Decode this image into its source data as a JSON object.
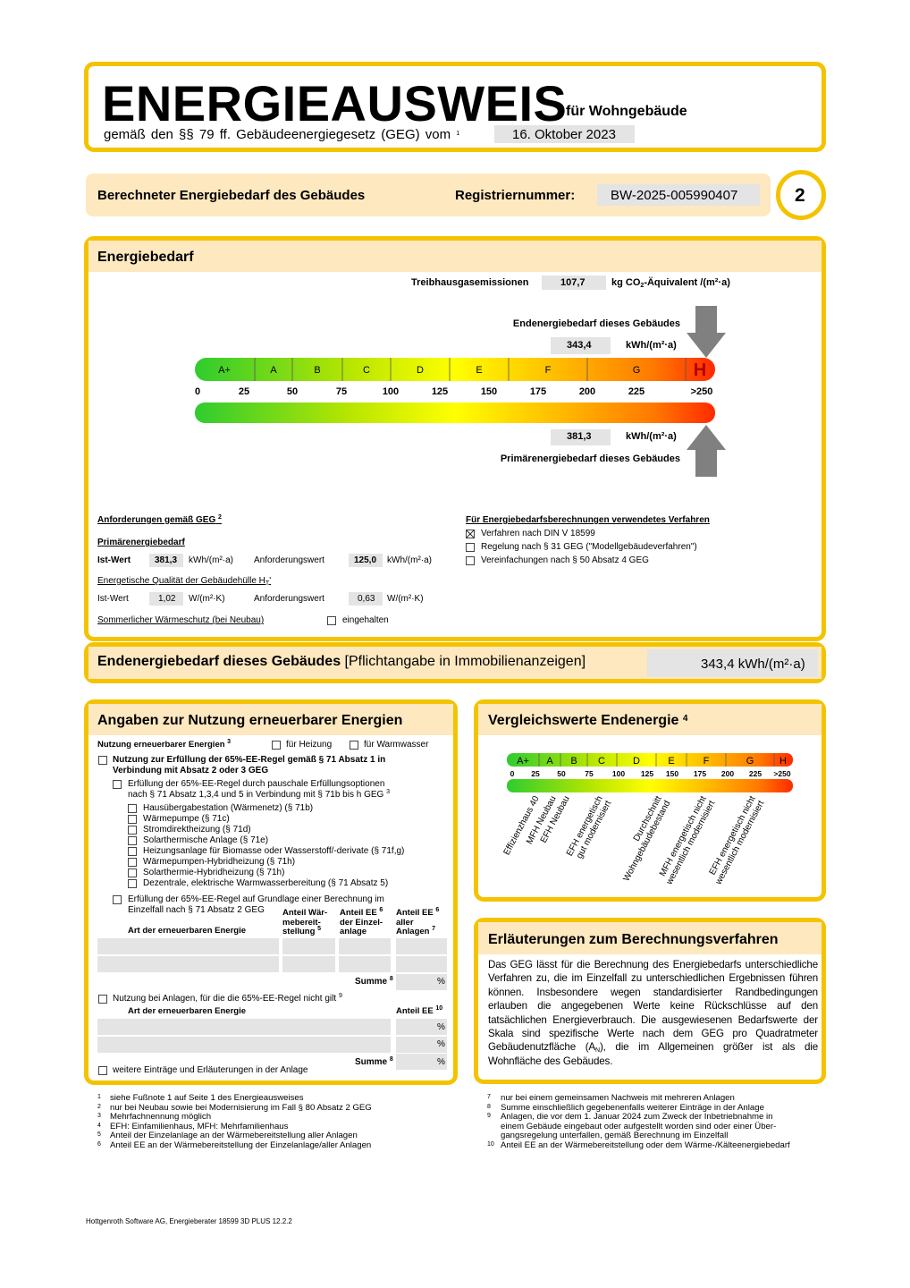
{
  "header": {
    "title": "ENERGIEAUSWEIS",
    "subtitle": "für Wohngebäude",
    "basis": "gemäß den §§ 79 ff. Gebäudeenergiegesetz (GEG) vom",
    "basis_note": "1",
    "date": "16. Oktober 2023"
  },
  "info_bar": {
    "label": "Berechneter Energiebedarf des Gebäudes",
    "registration_label": "Registriernummer:",
    "registration_number": "BW-2025-005990407",
    "page": "2"
  },
  "energy_demand": {
    "title": "Energiebedarf",
    "ghg": {
      "label": "Treibhausgasemissionen",
      "value": "107,7",
      "unit_pre": "kg CO",
      "unit_sub": "2",
      "unit_post": "-Äquivalent /(m²·a)"
    },
    "final": {
      "label": "Endenergiebedarf dieses Gebäudes",
      "value": "343,4",
      "unit": "kWh/(m²·a)"
    },
    "primary": {
      "label": "Primärenergiebedarf dieses Gebäudes",
      "value": "381,3",
      "unit": "kWh/(m²·a)"
    },
    "classes": [
      "A+",
      "A",
      "B",
      "C",
      "D",
      "E",
      "F",
      "G",
      "H"
    ],
    "scale": [
      "0",
      "25",
      "50",
      "75",
      "100",
      "125",
      "150",
      "175",
      "200",
      "225",
      ">250"
    ]
  },
  "requirements": {
    "title": "Anforderungen gemäß GEG",
    "title_note": "2",
    "primary_title": "Primärenergiebedarf",
    "actual_label": "Ist-Wert",
    "required_label": "Anforderungswert",
    "primary_actual": "381,3",
    "primary_required": "125,0",
    "primary_unit": "kWh/(m²·a)",
    "envelope_title": "Energetische Qualität der Gebäudehülle H",
    "envelope_sub": "T",
    "envelope_post": "'",
    "envelope_actual": "1,02",
    "envelope_required": "0,63",
    "envelope_unit": "W/(m²·K)",
    "summer": "Sommerlicher Wärmeschutz (bei Neubau)",
    "summer_check": "eingehalten"
  },
  "methods": {
    "title": "Für Energiebedarfsberechnungen verwendetes Verfahren",
    "items": [
      {
        "label": "Verfahren nach DIN V 18599",
        "checked": true
      },
      {
        "label": "Regelung nach § 31 GEG (\"Modellgebäudeverfahren\")",
        "checked": false
      },
      {
        "label": "Vereinfachungen nach § 50 Absatz 4 GEG",
        "checked": false
      }
    ]
  },
  "summary": {
    "label": "Endenergiebedarf dieses Gebäudes",
    "note": "[Pflichtangabe in Immobilienanzeigen]",
    "value": "343,4 kWh/(m²·a)"
  },
  "renewables": {
    "title": "Angaben zur Nutzung erneuerbarer Energien",
    "usage_label": "Nutzung erneuerbarer Energien",
    "usage_note": "3",
    "heating": "für Heizung",
    "hot_water": "für Warmwasser",
    "rule": [
      "Nutzung zur Erfüllung der 65%-EE-Regel gemäß § 71 Absatz 1 in",
      "Verbindung mit Absatz 2 oder 3 GEG"
    ],
    "flat_rate": [
      "Erfüllung der 65%-EE-Regel durch pauschale Erfüllungsoptionen",
      "nach § 71 Absatz 1,3,4 und 5 in Verbindung mit § 71b bis h GEG"
    ],
    "flat_rate_note": "3",
    "options": [
      "Hausübergabestation (Wärmenetz) (§ 71b)",
      "Wärmepumpe (§ 71c)",
      "Stromdirektheizung (§ 71d)",
      "Solarthermische Anlage (§ 71e)",
      "Heizungsanlage für Biomasse oder Wasserstoff/-derivate (§ 71f,g)",
      "Wärmepumpen-Hybridheizung (§ 71h)",
      "Solarthermie-Hybridheizung (§ 71h)",
      "Dezentrale, elektrische Warmwasserbereitung (§ 71 Absatz 5)"
    ],
    "calculation": [
      "Erfüllung der 65%-EE-Regel auf Grundlage einer Berechnung im",
      "Einzelfall nach § 71 Absatz 2 GEG"
    ],
    "table_headers": {
      "type": "Art der erneuerbaren Energie",
      "heat_share": [
        "Anteil Wär-",
        "mebereit-",
        "stellung"
      ],
      "heat_share_note": "5",
      "plant_share": [
        "Anteil EE",
        "der Einzel-",
        "anlage"
      ],
      "plant_share_note": "6",
      "all_share": [
        "Anteil EE",
        "aller",
        "Anlagen"
      ],
      "all_share_notes": [
        "6",
        "7"
      ]
    },
    "sum_label": "Summe",
    "sum_note": "8",
    "percent": "%",
    "other": "Nutzung bei Anlagen, für die die 65%-EE-Regel nicht gilt",
    "other_note": "9",
    "other_headers": {
      "type": "Art der erneuerbaren Energie",
      "share": "Anteil EE",
      "share_note": "10"
    },
    "further": "weitere Einträge und Erläuterungen in der Anlage"
  },
  "comparison": {
    "title": "Vergleichswerte Endenergie",
    "title_note": "4",
    "labels": [
      [
        "Effizienzhaus 40"
      ],
      [
        "MFH Neubau"
      ],
      [
        "EFH Neubau"
      ],
      [
        "EFH energetisch",
        "gut modernisiert"
      ],
      [
        "Durchschnitt",
        "Wohngebäudebestand"
      ],
      [
        "MFH energetisch nicht",
        "wesentlich modernisiert"
      ],
      [
        "EFH energetisch nicht",
        "wesentlich modernisiert"
      ]
    ]
  },
  "explanation": {
    "title": "Erläuterungen zum Berechnungsverfahren",
    "text": "Das GEG lässt für die Berechnung des Energiebedarfs unterschiedliche Verfahren zu, die im Einzelfall zu unterschiedlichen Ergebnissen führen können. Insbesondere wegen standardisierter Randbedingungen erlauben die angegebenen Werte keine Rückschlüsse auf den tatsächlichen Energieverbrauch. Die ausgewiesenen Bedarfswerte der Skala sind spezifische Werte nach dem GEG pro Quadratmeter Gebäudenutzfläche (A",
    "text_sub": "N",
    "text_post": "), die im Allgemeinen größer ist als die Wohnfläche des Gebäudes."
  },
  "footnotes_left": [
    {
      "n": "1",
      "lines": [
        "siehe Fußnote 1 auf Seite 1 des Energieausweises"
      ]
    },
    {
      "n": "2",
      "lines": [
        "nur bei Neubau sowie bei Modernisierung im Fall § 80 Absatz 2 GEG"
      ]
    },
    {
      "n": "3",
      "lines": [
        "Mehrfachnennung möglich"
      ]
    },
    {
      "n": "4",
      "lines": [
        "EFH: Einfamilienhaus, MFH: Mehrfamilienhaus"
      ]
    },
    {
      "n": "5",
      "lines": [
        "Anteil der Einzelanlage an der Wärmebereitstellung aller Anlagen"
      ]
    },
    {
      "n": "6",
      "lines": [
        "Anteil EE an der Wärmebereitstellung der Einzelanlage/aller Anlagen"
      ]
    }
  ],
  "footnotes_right": [
    {
      "n": "7",
      "lines": [
        "nur bei einem gemeinsamen Nachweis mit mehreren Anlagen"
      ]
    },
    {
      "n": "8",
      "lines": [
        "Summe einschließlich gegebenenfalls weiterer Einträge in der Anlage"
      ]
    },
    {
      "n": "9",
      "lines": [
        "Anlagen, die vor dem 1. Januar 2024 zum Zweck der Inbetriebnahme in",
        "einem Gebäude eingebaut oder aufgestellt worden sind oder einer Über-",
        "gangsregelung unterfallen, gemäß Berechnung im Einzelfall"
      ]
    },
    {
      "n": "10",
      "lines": [
        "Anteil EE an der Wärmebereitstellung oder dem Wärme-/Kälteenergiebedarf"
      ]
    }
  ],
  "footer": "Hottgenroth Software AG, Energieberater 18599 3D PLUS 12.2.2"
}
